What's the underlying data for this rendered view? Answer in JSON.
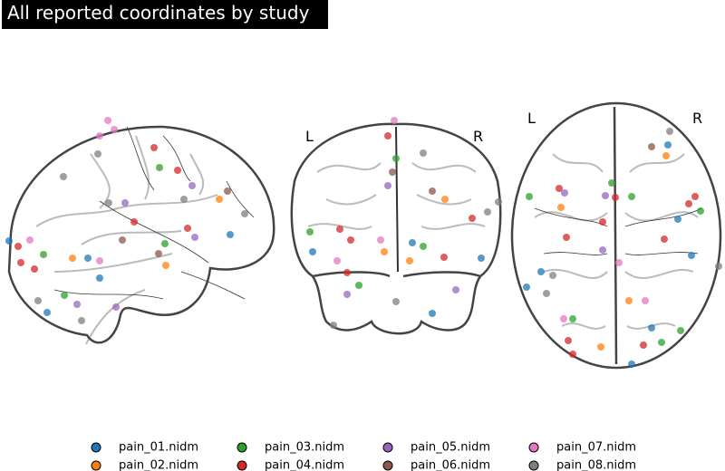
{
  "title": "All reported coordinates by study",
  "coronal_view": {
    "left_label": "L",
    "right_label": "R"
  },
  "axial_view": {
    "left_label": "L",
    "right_label": "R"
  },
  "legend": [
    {
      "name": "pain_01.nidm",
      "color": "#1f77b4"
    },
    {
      "name": "pain_02.nidm",
      "color": "#ff7f0e"
    },
    {
      "name": "pain_03.nidm",
      "color": "#2ca02c"
    },
    {
      "name": "pain_04.nidm",
      "color": "#d62728"
    },
    {
      "name": "pain_05.nidm",
      "color": "#9467bd"
    },
    {
      "name": "pain_06.nidm",
      "color": "#8c564b"
    },
    {
      "name": "pain_07.nidm",
      "color": "#e377c2"
    },
    {
      "name": "pain_08.nidm",
      "color": "#7f7f7f"
    }
  ]
}
